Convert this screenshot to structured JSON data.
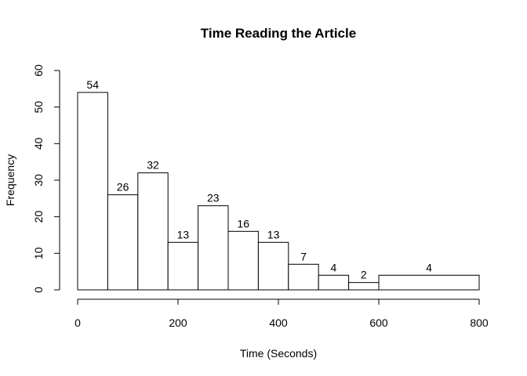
{
  "chart_data": {
    "type": "bar",
    "title": "Time Reading the Article",
    "xlabel": "Time (Seconds)",
    "ylabel": "Frequency",
    "bins": [
      {
        "start": 0,
        "end": 60,
        "value": 54
      },
      {
        "start": 60,
        "end": 120,
        "value": 26
      },
      {
        "start": 120,
        "end": 180,
        "value": 32
      },
      {
        "start": 180,
        "end": 240,
        "value": 13
      },
      {
        "start": 240,
        "end": 300,
        "value": 23
      },
      {
        "start": 300,
        "end": 360,
        "value": 16
      },
      {
        "start": 360,
        "end": 420,
        "value": 13
      },
      {
        "start": 420,
        "end": 480,
        "value": 7
      },
      {
        "start": 480,
        "end": 540,
        "value": 4
      },
      {
        "start": 540,
        "end": 600,
        "value": 2
      },
      {
        "start": 600,
        "end": 800,
        "value": 4
      }
    ],
    "xlim": [
      0,
      800
    ],
    "ylim": [
      0,
      60
    ],
    "xticks": [
      0,
      200,
      400,
      600,
      800
    ],
    "yticks": [
      0,
      10,
      20,
      30,
      40,
      50,
      60
    ],
    "grid": false,
    "legend": "none"
  }
}
